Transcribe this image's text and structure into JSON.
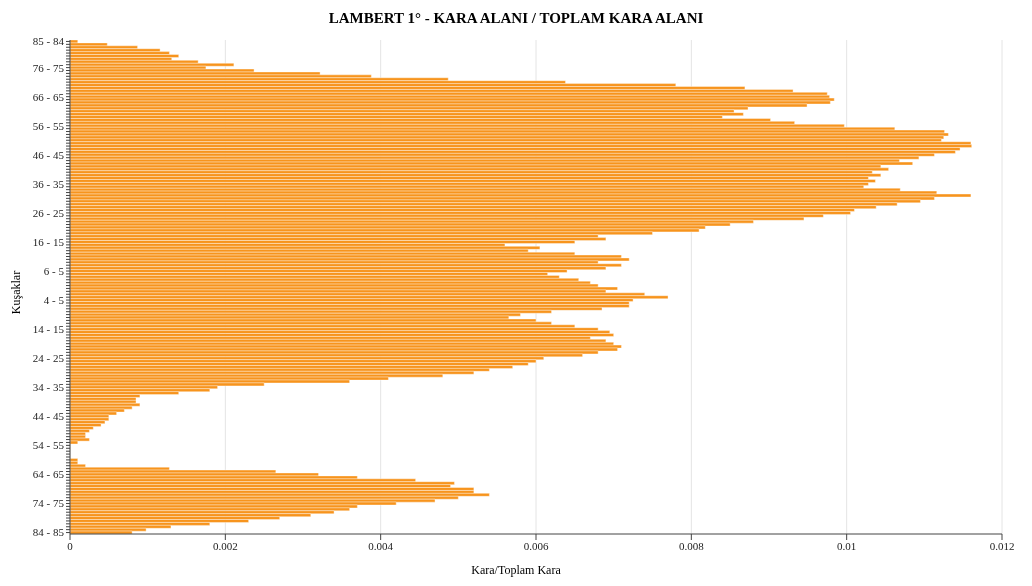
{
  "chart_data": {
    "type": "bar",
    "orientation": "horizontal",
    "title": "LAMBERT 1° - KARA ALANI / TOPLAM KARA ALANI",
    "xlabel": "Kara/Toplam Kara",
    "ylabel": "Kuşaklar",
    "categories": [
      "85 - 84",
      null,
      null,
      null,
      null,
      null,
      null,
      null,
      null,
      "76 - 75",
      null,
      null,
      null,
      null,
      null,
      null,
      null,
      null,
      null,
      "66 - 65",
      null,
      null,
      null,
      null,
      null,
      null,
      null,
      null,
      null,
      "56 - 55",
      null,
      null,
      null,
      null,
      null,
      null,
      null,
      null,
      null,
      "46 - 45",
      null,
      null,
      null,
      null,
      null,
      null,
      null,
      null,
      null,
      "36 - 35",
      null,
      null,
      null,
      null,
      null,
      null,
      null,
      null,
      null,
      "26 - 25",
      null,
      null,
      null,
      null,
      null,
      null,
      null,
      null,
      null,
      "16 - 15",
      null,
      null,
      null,
      null,
      null,
      null,
      null,
      null,
      null,
      "6 - 5",
      null,
      null,
      null,
      null,
      null,
      null,
      null,
      null,
      null,
      "4 - 5",
      null,
      null,
      null,
      null,
      null,
      null,
      null,
      null,
      null,
      "14 - 15",
      null,
      null,
      null,
      null,
      null,
      null,
      null,
      null,
      null,
      "24 - 25",
      null,
      null,
      null,
      null,
      null,
      null,
      null,
      null,
      null,
      "34 - 35",
      null,
      null,
      null,
      null,
      null,
      null,
      null,
      null,
      null,
      "44 - 45",
      null,
      null,
      null,
      null,
      null,
      null,
      null,
      null,
      null,
      "54 - 55",
      null,
      null,
      null,
      null,
      null,
      null,
      null,
      null,
      null,
      "64 - 65",
      null,
      null,
      null,
      null,
      null,
      null,
      null,
      null,
      null,
      "74 - 75",
      null,
      null,
      null,
      null,
      null,
      null,
      null,
      null,
      null,
      "84 - 85"
    ],
    "values": [
      0.0001,
      0.00048,
      0.00087,
      0.00116,
      0.00128,
      0.0014,
      0.00131,
      0.00165,
      0.00211,
      0.00175,
      0.00237,
      0.00322,
      0.00388,
      0.00487,
      0.00638,
      0.0078,
      0.00869,
      0.00931,
      0.00975,
      0.00978,
      0.00984,
      0.00979,
      0.00949,
      0.00873,
      0.00855,
      0.00867,
      0.0084,
      0.00902,
      0.00933,
      0.00997,
      0.01062,
      0.01126,
      0.01131,
      0.01125,
      0.01122,
      0.0116,
      0.01161,
      0.01146,
      0.0114,
      0.01113,
      0.01093,
      0.01068,
      0.01085,
      0.01044,
      0.01054,
      0.01033,
      0.01044,
      0.01028,
      0.01037,
      0.01028,
      0.01022,
      0.01069,
      0.01116,
      0.0116,
      0.01113,
      0.01095,
      0.01065,
      0.01038,
      0.0101,
      0.01005,
      0.0097,
      0.00945,
      0.0088,
      0.0085,
      0.00818,
      0.0081,
      0.0075,
      0.0068,
      0.0069,
      0.0065,
      0.0056,
      0.00605,
      0.0059,
      0.0065,
      0.0071,
      0.0072,
      0.0068,
      0.0071,
      0.0069,
      0.0064,
      0.00615,
      0.0063,
      0.00655,
      0.0067,
      0.0068,
      0.00705,
      0.0069,
      0.0074,
      0.0077,
      0.00725,
      0.0072,
      0.0072,
      0.00685,
      0.0062,
      0.0058,
      0.00565,
      0.006,
      0.0062,
      0.0065,
      0.0068,
      0.00695,
      0.007,
      0.0067,
      0.0069,
      0.007,
      0.0071,
      0.00705,
      0.0068,
      0.0066,
      0.0061,
      0.006,
      0.0059,
      0.0057,
      0.0054,
      0.0052,
      0.0048,
      0.0041,
      0.0036,
      0.0025,
      0.0019,
      0.0018,
      0.0014,
      0.0009,
      0.00085,
      0.00085,
      0.0009,
      0.0008,
      0.0007,
      0.0006,
      0.0005,
      0.0005,
      0.00045,
      0.0004,
      0.0003,
      0.00025,
      0.0002,
      0.0002,
      0.00025,
      0.0001,
      0,
      0,
      0,
      0,
      0,
      0.0001,
      0.0001,
      0.0002,
      0.00128,
      0.00265,
      0.0032,
      0.0037,
      0.00445,
      0.00495,
      0.0049,
      0.0052,
      0.0052,
      0.0054,
      0.005,
      0.0047,
      0.0042,
      0.0037,
      0.0036,
      0.0034,
      0.0031,
      0.0027,
      0.0023,
      0.0018,
      0.0013,
      0.00098,
      0.0008
    ],
    "color": "#f7941d",
    "xlim": [
      0,
      0.012
    ],
    "xticks": [
      0,
      0.002,
      0.004,
      0.006,
      0.008,
      0.01,
      0.012
    ],
    "grid": true
  }
}
